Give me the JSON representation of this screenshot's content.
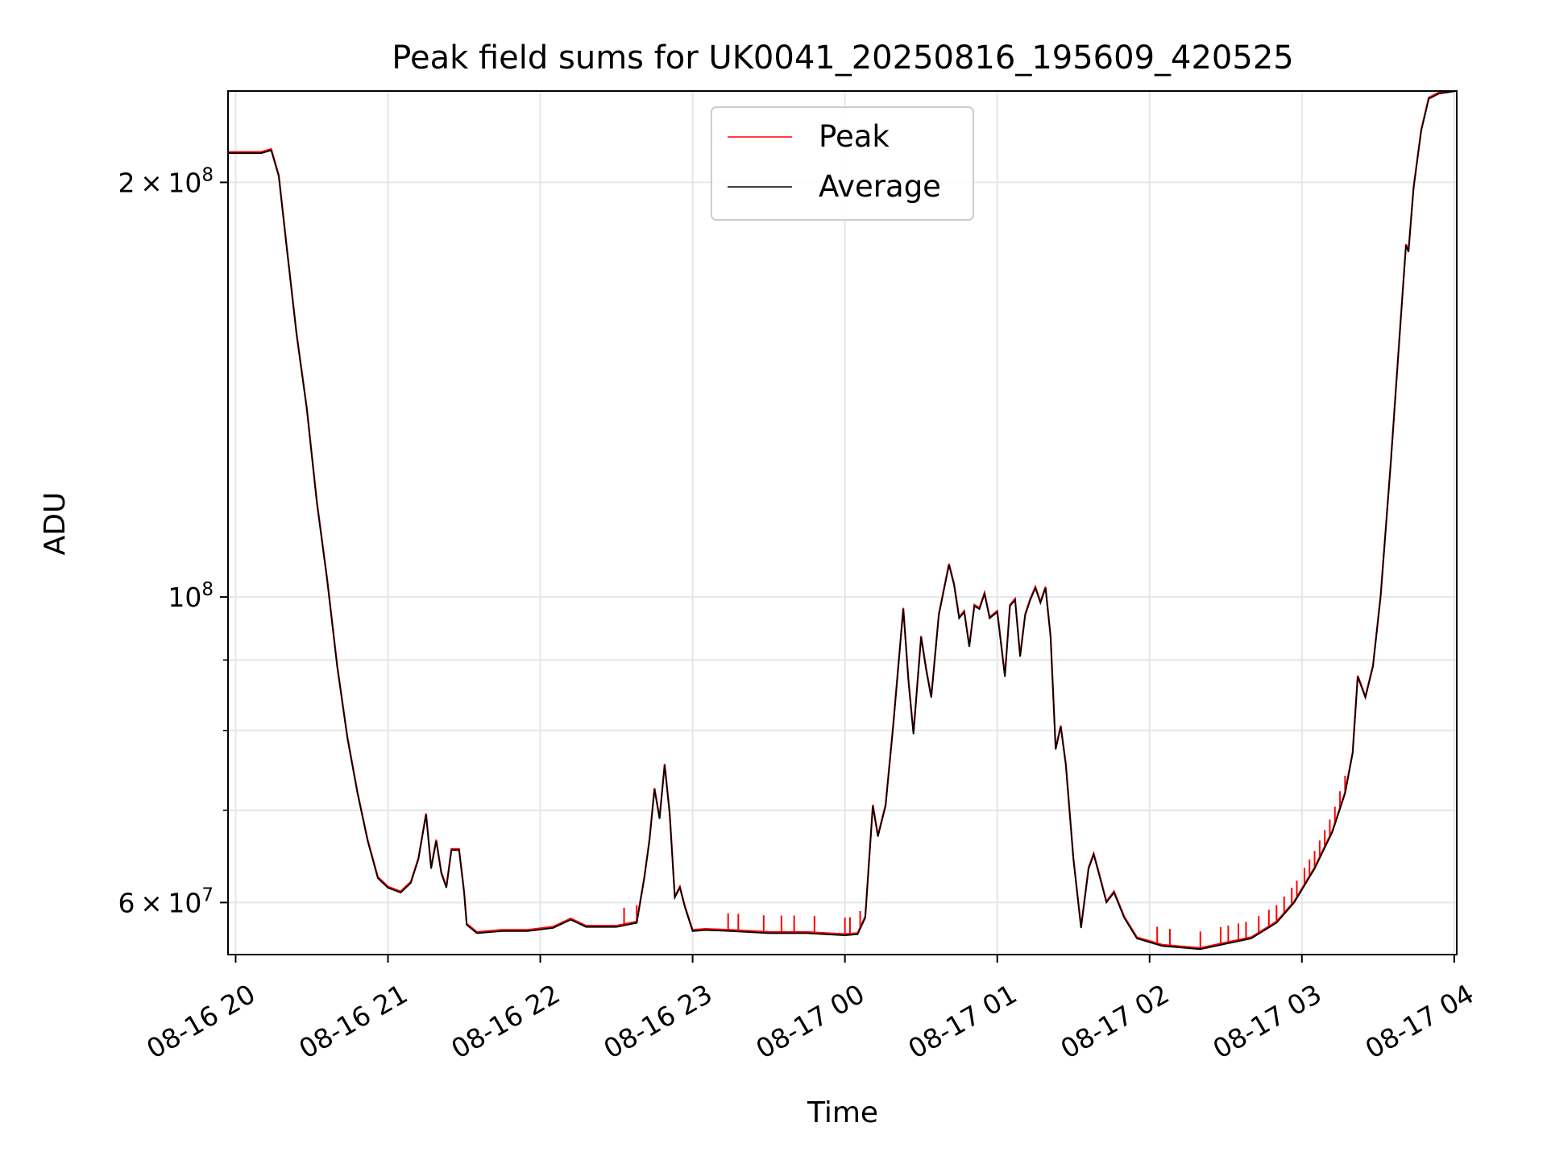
{
  "chart_data": {
    "type": "line",
    "title": "Peak field sums for UK0041_20250816_195609_420525",
    "xlabel": "Time",
    "ylabel": "ADU",
    "x_unit": "hour",
    "x_range": [
      "08-16 19:57",
      "08-17 04:01"
    ],
    "y_scale": "log",
    "ylim": [
      55000000,
      233000000
    ],
    "grid": true,
    "legend_placement": "upper-center",
    "x_ticks": [
      {
        "value": "08-16 20:00",
        "label": "08-16 20"
      },
      {
        "value": "08-16 21:00",
        "label": "08-16 21"
      },
      {
        "value": "08-16 22:00",
        "label": "08-16 22"
      },
      {
        "value": "08-16 23:00",
        "label": "08-16 23"
      },
      {
        "value": "08-17 00:00",
        "label": "08-17 00"
      },
      {
        "value": "08-17 01:00",
        "label": "08-17 01"
      },
      {
        "value": "08-17 02:00",
        "label": "08-17 02"
      },
      {
        "value": "08-17 03:00",
        "label": "08-17 03"
      },
      {
        "value": "08-17 04:00",
        "label": "08-17 04"
      }
    ],
    "y_major_ticks": [
      {
        "value": 60000000,
        "base": "6",
        "exp": "7"
      },
      {
        "value": 100000000,
        "base": "",
        "exp": "8"
      },
      {
        "value": 200000000,
        "base": "2",
        "exp": "8"
      }
    ],
    "y_minor_ticks": [
      70000000,
      80000000,
      90000000
    ],
    "series": [
      {
        "name": "Peak",
        "color": "#ff0000",
        "spike_times": [
          "08-16 22:33",
          "08-16 22:38",
          "08-16 23:14",
          "08-16 23:18",
          "08-16 23:28",
          "08-16 23:35",
          "08-16 23:40",
          "08-16 23:48",
          "08-17 00:00",
          "08-17 00:02",
          "08-17 00:06",
          "08-17 02:03",
          "08-17 02:08",
          "08-17 02:20",
          "08-17 02:28",
          "08-17 02:31",
          "08-17 02:35",
          "08-17 02:38",
          "08-17 02:43",
          "08-17 02:47",
          "08-17 02:50",
          "08-17 02:53",
          "08-17 02:56",
          "08-17 02:58",
          "08-17 03:01",
          "08-17 03:03",
          "08-17 03:05",
          "08-17 03:07",
          "08-17 03:09",
          "08-17 03:11",
          "08-17 03:13",
          "08-17 03:15",
          "08-17 03:17"
        ]
      },
      {
        "name": "Average",
        "color": "#000000",
        "points": [
          [
            "08-16 19:57",
            210000000
          ],
          [
            "08-16 20:10",
            210000000
          ],
          [
            "08-16 20:14",
            211000000
          ],
          [
            "08-16 20:17",
            202000000
          ],
          [
            "08-16 20:20",
            180000000
          ],
          [
            "08-16 20:24",
            155000000
          ],
          [
            "08-16 20:28",
            137000000
          ],
          [
            "08-16 20:32",
            117000000
          ],
          [
            "08-16 20:36",
            103000000
          ],
          [
            "08-16 20:40",
            89000000
          ],
          [
            "08-16 20:44",
            79000000
          ],
          [
            "08-16 20:48",
            72000000
          ],
          [
            "08-16 20:52",
            66500000
          ],
          [
            "08-16 20:56",
            62500000
          ],
          [
            "08-16 21:00",
            61500000
          ],
          [
            "08-16 21:05",
            61000000
          ],
          [
            "08-16 21:09",
            62000000
          ],
          [
            "08-16 21:12",
            64500000
          ],
          [
            "08-16 21:15",
            69500000
          ],
          [
            "08-16 21:17",
            63500000
          ],
          [
            "08-16 21:19",
            66500000
          ],
          [
            "08-16 21:21",
            63000000
          ],
          [
            "08-16 21:23",
            61500000
          ],
          [
            "08-16 21:25",
            65500000
          ],
          [
            "08-16 21:28",
            65500000
          ],
          [
            "08-16 21:30",
            61000000
          ],
          [
            "08-16 21:31",
            57800000
          ],
          [
            "08-16 21:35",
            57000000
          ],
          [
            "08-16 21:45",
            57200000
          ],
          [
            "08-16 21:55",
            57200000
          ],
          [
            "08-16 22:05",
            57500000
          ],
          [
            "08-16 22:12",
            58300000
          ],
          [
            "08-16 22:18",
            57600000
          ],
          [
            "08-16 22:30",
            57600000
          ],
          [
            "08-16 22:38",
            58000000
          ],
          [
            "08-16 22:41",
            62500000
          ],
          [
            "08-16 22:43",
            66500000
          ],
          [
            "08-16 22:45",
            72500000
          ],
          [
            "08-16 22:47",
            69000000
          ],
          [
            "08-16 22:49",
            75500000
          ],
          [
            "08-16 22:51",
            69500000
          ],
          [
            "08-16 22:53",
            60500000
          ],
          [
            "08-16 22:55",
            61500000
          ],
          [
            "08-16 22:57",
            59500000
          ],
          [
            "08-16 23:00",
            57200000
          ],
          [
            "08-16 23:05",
            57300000
          ],
          [
            "08-16 23:15",
            57200000
          ],
          [
            "08-16 23:30",
            57000000
          ],
          [
            "08-16 23:45",
            57000000
          ],
          [
            "08-17 00:00",
            56800000
          ],
          [
            "08-17 00:05",
            56900000
          ],
          [
            "08-17 00:08",
            58500000
          ],
          [
            "08-17 00:11",
            70500000
          ],
          [
            "08-17 00:13",
            67000000
          ],
          [
            "08-17 00:16",
            70500000
          ],
          [
            "08-17 00:19",
            80500000
          ],
          [
            "08-17 00:23",
            98000000
          ],
          [
            "08-17 00:25",
            87000000
          ],
          [
            "08-17 00:27",
            79500000
          ],
          [
            "08-17 00:30",
            93500000
          ],
          [
            "08-17 00:32",
            88500000
          ],
          [
            "08-17 00:34",
            84500000
          ],
          [
            "08-17 00:37",
            97000000
          ],
          [
            "08-17 00:41",
            105500000
          ],
          [
            "08-17 00:43",
            102000000
          ],
          [
            "08-17 00:45",
            96500000
          ],
          [
            "08-17 00:47",
            97500000
          ],
          [
            "08-17 00:49",
            92000000
          ],
          [
            "08-17 00:51",
            98500000
          ],
          [
            "08-17 00:53",
            98000000
          ],
          [
            "08-17 00:55",
            100500000
          ],
          [
            "08-17 00:57",
            96500000
          ],
          [
            "08-17 01:00",
            97500000
          ],
          [
            "08-17 01:03",
            87500000
          ],
          [
            "08-17 01:05",
            98500000
          ],
          [
            "08-17 01:07",
            99500000
          ],
          [
            "08-17 01:09",
            90500000
          ],
          [
            "08-17 01:11",
            97000000
          ],
          [
            "08-17 01:13",
            99500000
          ],
          [
            "08-17 01:15",
            101500000
          ],
          [
            "08-17 01:17",
            99000000
          ],
          [
            "08-17 01:19",
            101500000
          ],
          [
            "08-17 01:21",
            93500000
          ],
          [
            "08-17 01:23",
            77500000
          ],
          [
            "08-17 01:25",
            80500000
          ],
          [
            "08-17 01:27",
            75500000
          ],
          [
            "08-17 01:30",
            64500000
          ],
          [
            "08-17 01:33",
            57500000
          ],
          [
            "08-17 01:36",
            63500000
          ],
          [
            "08-17 01:38",
            65000000
          ],
          [
            "08-17 01:40",
            63000000
          ],
          [
            "08-17 01:43",
            60000000
          ],
          [
            "08-17 01:46",
            61000000
          ],
          [
            "08-17 01:50",
            58500000
          ],
          [
            "08-17 01:55",
            56500000
          ],
          [
            "08-17 02:05",
            55800000
          ],
          [
            "08-17 02:20",
            55500000
          ],
          [
            "08-17 02:30",
            56000000
          ],
          [
            "08-17 02:40",
            56500000
          ],
          [
            "08-17 02:50",
            58000000
          ],
          [
            "08-17 02:57",
            60000000
          ],
          [
            "08-17 03:05",
            63500000
          ],
          [
            "08-17 03:12",
            67500000
          ],
          [
            "08-17 03:17",
            72000000
          ],
          [
            "08-17 03:20",
            77000000
          ],
          [
            "08-17 03:22",
            87500000
          ],
          [
            "08-17 03:25",
            84500000
          ],
          [
            "08-17 03:28",
            89000000
          ],
          [
            "08-17 03:31",
            100000000
          ],
          [
            "08-17 03:35",
            125000000
          ],
          [
            "08-17 03:38",
            150000000
          ],
          [
            "08-17 03:41",
            180000000
          ],
          [
            "08-17 03:42",
            178000000
          ],
          [
            "08-17 03:44",
            198000000
          ],
          [
            "08-17 03:47",
            218000000
          ],
          [
            "08-17 03:50",
            230000000
          ],
          [
            "08-17 03:54",
            232000000
          ],
          [
            "08-17 04:01",
            233000000
          ]
        ]
      }
    ]
  }
}
